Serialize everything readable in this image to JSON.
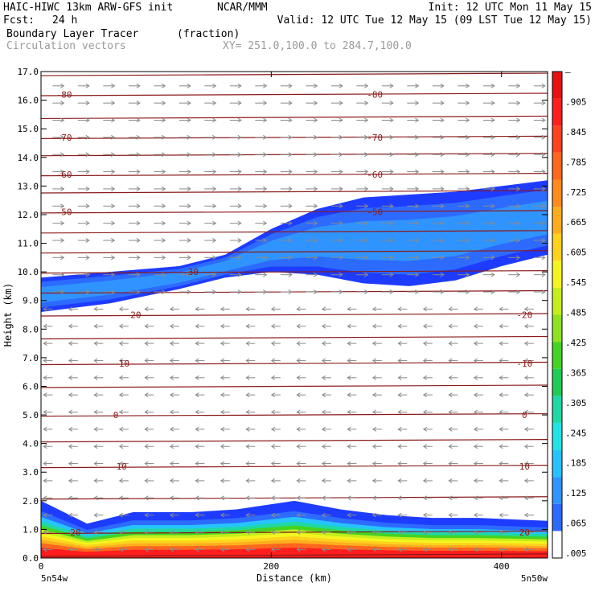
{
  "header": {
    "model": "HAIC-HIWC 13km ARW-GFS init",
    "org": "NCAR/MMM",
    "init": "Init: 12 UTC Mon 11 May 15",
    "fcst_label": "Fcst:",
    "fcst_value": "24 h",
    "valid": "Valid: 12 UTC Tue 12 May 15 (09 LST Tue 12 May 15)",
    "field": "Boundary Layer Tracer",
    "units": "(fraction)",
    "vectors": "Circulation vectors",
    "xy": "XY= 251.0,100.0 to 284.7,100.0"
  },
  "colors": {
    "contour": "#8b1a1a",
    "vector": "#8a8a8a",
    "palette": [
      "#ffffff",
      "#1e3cff",
      "#2d6bff",
      "#2f94ff",
      "#27c3ff",
      "#22e4e4",
      "#1fd8a5",
      "#20cc55",
      "#44d323",
      "#8ee21f",
      "#c4ee1c",
      "#f4f51e",
      "#ffd21e",
      "#ffad1e",
      "#ff8a1e",
      "#ff661e",
      "#ff411e",
      "#ff1e1e",
      "#e81010"
    ]
  },
  "chart_data": {
    "type": "heatmap",
    "xlabel": "Distance (km)",
    "ylabel": "Height (km)",
    "xlim": [
      0,
      440
    ],
    "ylim": [
      0,
      17
    ],
    "x_ticks": [
      "0",
      "200",
      "400"
    ],
    "x_end_labels": [
      "5n54w",
      "5n50w"
    ],
    "y_ticks": [
      "0.0",
      "1.0",
      "2.0",
      "3.0",
      "4.0",
      "5.0",
      "6.0",
      "7.0",
      "8.0",
      "9.0",
      "10.0",
      "11.0",
      "12.0",
      "13.0",
      "14.0",
      "15.0",
      "16.0",
      "17.0"
    ],
    "colorbar": {
      "labels": [
        ".005",
        ".065",
        ".125",
        ".185",
        ".245",
        ".305",
        ".365",
        ".425",
        ".485",
        ".545",
        ".605",
        ".665",
        ".725",
        ".785",
        ".845",
        ".905",
        "–"
      ]
    },
    "upper_layer": {
      "x": [
        0,
        60,
        120,
        160,
        200,
        240,
        280,
        320,
        360,
        400,
        440
      ],
      "bottom": [
        8.6,
        8.9,
        9.4,
        9.8,
        10.0,
        9.9,
        9.6,
        9.5,
        9.7,
        10.2,
        10.6
      ],
      "top": [
        9.8,
        10.0,
        10.2,
        10.6,
        11.5,
        12.2,
        12.6,
        12.7,
        12.8,
        13.0,
        13.2
      ]
    },
    "lower_layer": {
      "x": [
        0,
        40,
        80,
        130,
        170,
        220,
        260,
        300,
        340,
        380,
        440
      ],
      "top": [
        2.0,
        1.2,
        1.6,
        1.6,
        1.7,
        2.0,
        1.7,
        1.5,
        1.4,
        1.4,
        1.3
      ]
    },
    "contour_labels": [
      {
        "text": "-80",
        "x": 20,
        "y": 16.2
      },
      {
        "text": "-80",
        "x": 290,
        "y": 16.2
      },
      {
        "text": "-70",
        "x": 20,
        "y": 14.7
      },
      {
        "text": "-70",
        "x": 290,
        "y": 14.7
      },
      {
        "text": "-60",
        "x": 20,
        "y": 13.4
      },
      {
        "text": "-60",
        "x": 290,
        "y": 13.4
      },
      {
        "text": "-50",
        "x": 20,
        "y": 12.1
      },
      {
        "text": "-50",
        "x": 290,
        "y": 12.1
      },
      {
        "text": "-30",
        "x": 130,
        "y": 10.0
      },
      {
        "text": "-20",
        "x": 80,
        "y": 8.5
      },
      {
        "text": "-20",
        "x": 420,
        "y": 8.5
      },
      {
        "text": "-10",
        "x": 70,
        "y": 6.8
      },
      {
        "text": "-10",
        "x": 420,
        "y": 6.8
      },
      {
        "text": "0",
        "x": 65,
        "y": 5.0
      },
      {
        "text": "0",
        "x": 420,
        "y": 5.0
      },
      {
        "text": "10",
        "x": 70,
        "y": 3.2
      },
      {
        "text": "10",
        "x": 420,
        "y": 3.2
      },
      {
        "text": "20",
        "x": 30,
        "y": 0.9
      },
      {
        "text": "20",
        "x": 420,
        "y": 0.9
      }
    ],
    "contour_levels_y": [
      0.1,
      0.9,
      2.1,
      3.2,
      4.1,
      5.0,
      6.0,
      6.8,
      7.7,
      8.5,
      9.3,
      10.0,
      10.7,
      11.4,
      12.1,
      12.8,
      13.4,
      14.1,
      14.7,
      15.4,
      16.2,
      16.9
    ],
    "vectors_upper_direction": "east",
    "vectors_lower_direction": "west"
  }
}
